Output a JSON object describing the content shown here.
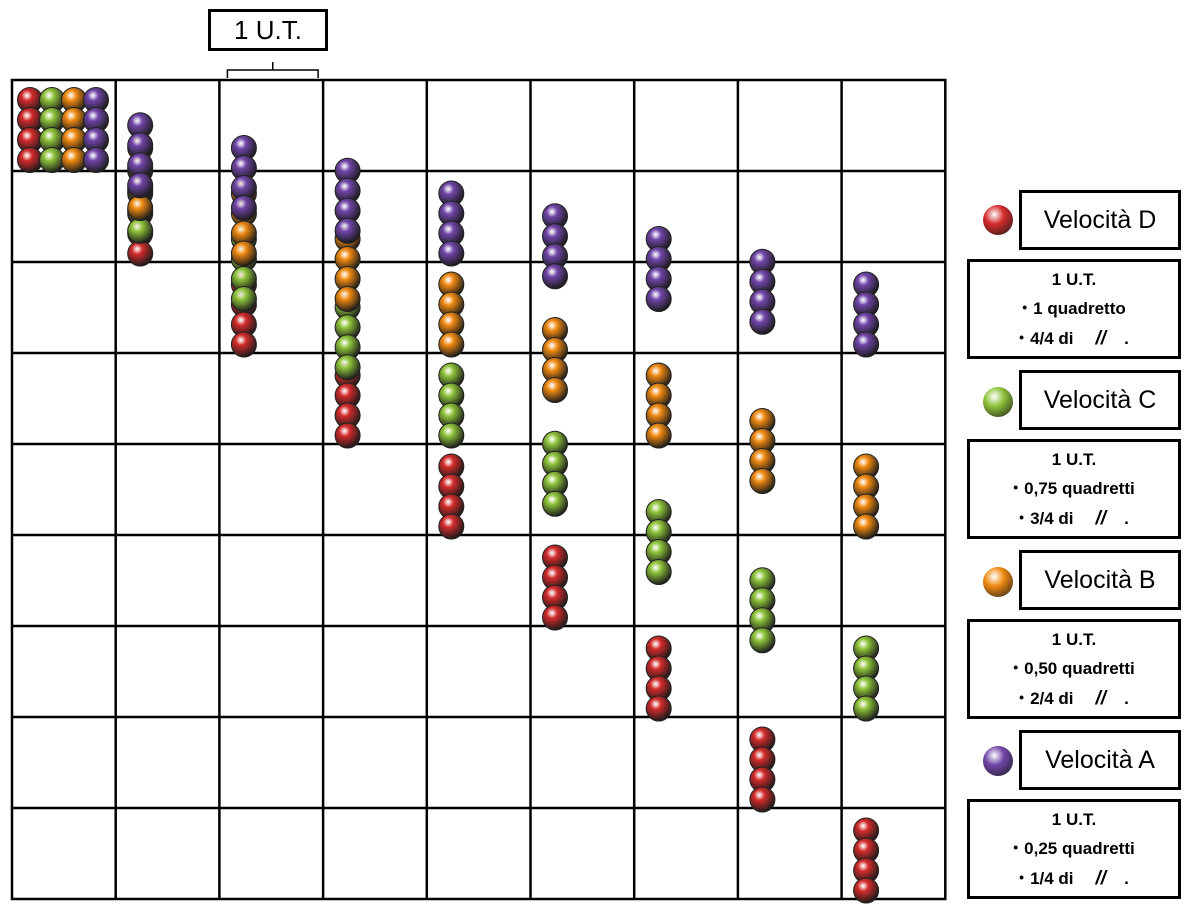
{
  "unit_label": "1 U.T.",
  "grid": {
    "cols": 9,
    "rows": 9
  },
  "colors": {
    "D": "#d32b2b",
    "C": "#8ec33a",
    "B": "#f08a12",
    "A": "#7046a8"
  },
  "legend": [
    {
      "speed_label": "Velocità D",
      "color_key": "D",
      "unit": "1 U.T.",
      "distance": "1 quadretto",
      "fraction": "4/4 di",
      "slashes": "//",
      "period": "."
    },
    {
      "speed_label": "Velocità C",
      "color_key": "C",
      "unit": "1 U.T.",
      "distance": "0,75 quadretti",
      "fraction": "3/4 di",
      "slashes": "//",
      "period": "."
    },
    {
      "speed_label": "Velocità B",
      "color_key": "B",
      "unit": "1 U.T.",
      "distance": "0,50 quadretti",
      "fraction": "2/4 di",
      "slashes": "//",
      "period": "."
    },
    {
      "speed_label": "Velocità A",
      "color_key": "A",
      "unit": "1 U.T.",
      "distance": "0,25 quadretti",
      "fraction": "1/4 di",
      "slashes": "//",
      "period": "."
    }
  ],
  "speeds_per_step": {
    "D": 1,
    "C": 0.75,
    "B": 0.5,
    "A": 0.25
  },
  "time_steps": 9
}
